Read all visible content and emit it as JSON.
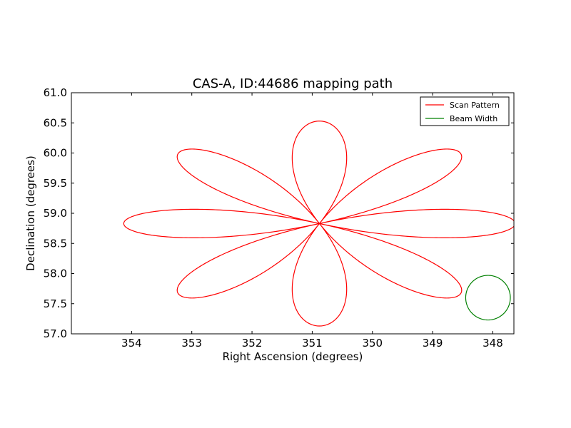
{
  "chart_data": {
    "type": "line",
    "title": "CAS-A, ID:44686 mapping path",
    "xlabel": "Right Ascension (degrees)",
    "ylabel": "Declination (degrees)",
    "xlim": [
      355.0,
      347.65
    ],
    "ylim": [
      57.0,
      61.0
    ],
    "xticks": [
      354,
      353,
      352,
      351,
      350,
      349,
      348
    ],
    "xtick_labels": [
      "354",
      "353",
      "352",
      "351",
      "350",
      "349",
      "348"
    ],
    "yticks": [
      57.0,
      57.5,
      58.0,
      58.5,
      59.0,
      59.5,
      60.0,
      60.5,
      61.0
    ],
    "ytick_labels": [
      "57.0",
      "57.5",
      "58.0",
      "58.5",
      "59.0",
      "59.5",
      "60.0",
      "60.5",
      "61.0"
    ],
    "grid": false,
    "legend_position": "top-right",
    "series": [
      {
        "name": "Scan Pattern",
        "color": "#ff0000",
        "kind": "rose",
        "center": [
          350.88,
          58.83
        ],
        "petals": 8,
        "x_amplitude": 3.25,
        "y_amplitude": 1.7
      },
      {
        "name": "Beam Width",
        "color": "#008000",
        "kind": "circle",
        "center": [
          348.08,
          57.6
        ],
        "radius_dec": 0.37
      }
    ]
  }
}
